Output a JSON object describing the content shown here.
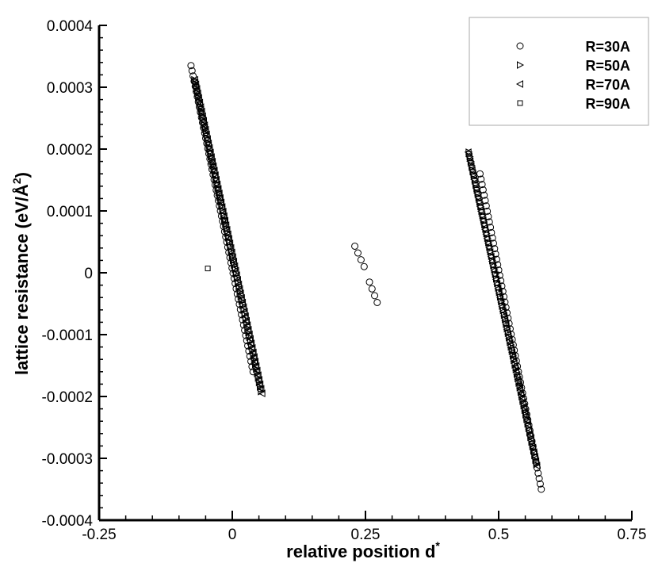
{
  "chart_data": {
    "type": "scatter",
    "title": "",
    "xlabel": "relative position d",
    "xlabel_superscript": "*",
    "ylabel": "lattice resistance (eV/Å",
    "ylabel_superscript": "2",
    "ylabel_suffix": ")",
    "xlim": [
      -0.25,
      0.75
    ],
    "ylim": [
      -0.0004,
      0.0004
    ],
    "x_ticks": [
      -0.25,
      0,
      0.25,
      0.5,
      0.75
    ],
    "x_tick_labels": [
      "-0.25",
      "0",
      "0.25",
      "0.5",
      "0.75"
    ],
    "y_ticks": [
      -0.0004,
      -0.0003,
      -0.0002,
      -0.0001,
      0,
      0.0001,
      0.0002,
      0.0003,
      0.0004
    ],
    "y_tick_labels": [
      "-0.0004",
      "-0.0003",
      "-0.0002",
      "-0.0001",
      "0",
      "0.0001",
      "0.0002",
      "0.0003",
      "0.0004"
    ],
    "grid": false,
    "legend_position": "top-right",
    "series": [
      {
        "name": "R=30A",
        "marker": "circle",
        "segments": [
          {
            "from": [
              -0.0775,
              0.000335
            ],
            "to": [
              0.039,
              -0.00016
            ],
            "n": 60
          },
          {
            "from": [
              0.23,
              4.3e-05
            ],
            "to": [
              0.2475,
              1e-05
            ],
            "n": 4
          },
          {
            "from": [
              0.2575,
              -1.5e-05
            ],
            "to": [
              0.272,
              -4.8e-05
            ],
            "n": 4
          },
          {
            "from": [
              0.465,
              0.00016
            ],
            "to": [
              0.58,
              -0.00035
            ],
            "n": 60
          }
        ]
      },
      {
        "name": "R=50A",
        "marker": "triangle-right",
        "segments": [
          {
            "from": [
              -0.071,
              0.000312
            ],
            "to": [
              0.054,
              -0.000192
            ],
            "n": 70
          },
          {
            "from": [
              0.444,
              0.000195
            ],
            "to": [
              0.571,
              -0.00031
            ],
            "n": 70
          }
        ]
      },
      {
        "name": "R=70A",
        "marker": "triangle-left",
        "segments": [
          {
            "from": [
              -0.07,
              0.000312
            ],
            "to": [
              0.056,
              -0.000195
            ],
            "n": 70
          },
          {
            "from": [
              0.443,
              0.000195
            ],
            "to": [
              0.572,
              -0.000312
            ],
            "n": 70
          }
        ]
      },
      {
        "name": "R=90A",
        "marker": "square",
        "segments": [
          {
            "from": [
              -0.069,
              0.000308
            ],
            "to": [
              0.053,
              -0.000188
            ],
            "n": 70
          },
          {
            "from": [
              0.444,
              0.000192
            ],
            "to": [
              0.57,
              -0.000305
            ],
            "n": 70
          },
          {
            "from": [
              -0.046,
              7e-06
            ],
            "to": [
              -0.046,
              7e-06
            ],
            "n": 1
          }
        ]
      }
    ],
    "colors": {
      "marker_stroke": "#000000",
      "axis": "#000000",
      "background": "#ffffff",
      "legend_border": "#aaaaaa"
    }
  }
}
